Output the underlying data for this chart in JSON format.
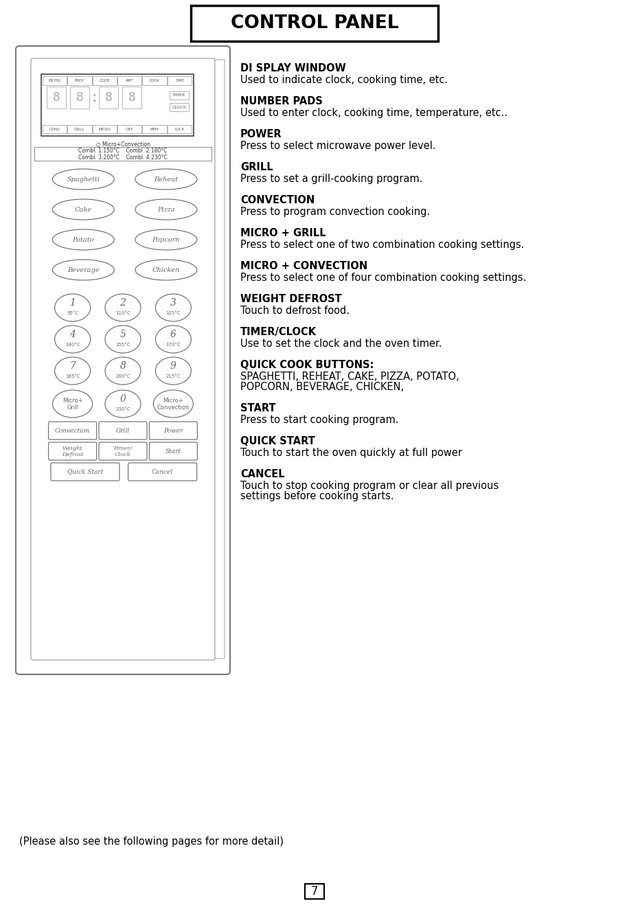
{
  "title": "CONTROL PANEL",
  "bg_color": "#ffffff",
  "entries": [
    {
      "heading": "DI SPLAY WINDOW",
      "body": "Used to indicate clock, cooking time, etc."
    },
    {
      "heading": "NUMBER PADS",
      "body": "Used to enter clock, cooking time, temperature, etc.."
    },
    {
      "heading": "POWER",
      "body": "Press to select microwave power level."
    },
    {
      "heading": "GRILL",
      "body": "Press to set a grill-cooking program."
    },
    {
      "heading": "CONVECTION",
      "body": "Press to program convection cooking."
    },
    {
      "heading": "MICRO + GRILL",
      "body": "Press to select one of two combination cooking settings."
    },
    {
      "heading": "MICRO + CONVECTION",
      "body": "Press to select one of four combination cooking settings."
    },
    {
      "heading": "WEIGHT DEFROST",
      "body": "Touch to defrost food."
    },
    {
      "heading": "TIMER/CLOCK",
      "body": "Use to set the clock and the oven timer."
    },
    {
      "heading": "QUICK COOK BUTTONS:",
      "body": "SPAGHETTI, REHEAT, CAKE, PIZZA, POTATO,\nPOPCORN, BEVERAGE, CHICKEN,"
    },
    {
      "heading": "START",
      "body": "Press to start cooking program."
    },
    {
      "heading": "QUICK START",
      "body": "Touch to start the oven quickly at full power"
    },
    {
      "heading": "CANCEL",
      "body": "Touch to stop cooking program or clear all previous\nsettings before cooking starts."
    }
  ],
  "footer": "(Please also see the following pages for more detail)",
  "page_number": "7",
  "panel_rows_top": [
    "ENTER",
    "PREV",
    "CODE",
    "AMT",
    "COOK",
    "TIME"
  ],
  "panel_rows_bot": [
    "CONV",
    "GRILL",
    "MICRO",
    "DEF",
    "MEM",
    "LOCK"
  ],
  "panel_right_labels": [
    "TIMER",
    "CLOCK"
  ],
  "combi_line0": "○ Micro+Convection",
  "combi_line1": "Combl. 1:150°C    Combl. 2:180°C",
  "combi_line2": "Combl. 3:200°C    Combl. 4:230°C",
  "quick_buttons": [
    [
      "Spaghetti",
      "Reheat"
    ],
    [
      "Cake",
      "Pizza"
    ],
    [
      "Potato",
      "Popcorn"
    ],
    [
      "Beverage",
      "Chicken"
    ]
  ],
  "num_rows": [
    [
      [
        "1",
        "95°C"
      ],
      [
        "2",
        "110°C"
      ],
      [
        "3",
        "125°C"
      ]
    ],
    [
      [
        "4",
        "140°C"
      ],
      [
        "5",
        "155°C"
      ],
      [
        "6",
        "170°C"
      ]
    ],
    [
      [
        "7",
        "185°C"
      ],
      [
        "8",
        "200°C"
      ],
      [
        "9",
        "215°C"
      ]
    ]
  ],
  "special_row": [
    [
      "Micro+",
      "Grill",
      null
    ],
    [
      "0",
      "230°C",
      null
    ],
    [
      "Micro+",
      "Convection",
      null
    ]
  ],
  "rect_row1": [
    "Convection",
    "Grill",
    "Power"
  ],
  "rect_row2_lines": [
    [
      "Weight",
      "Defrost"
    ],
    [
      "Timer/",
      "Clock"
    ],
    [
      "Start"
    ]
  ],
  "rect_row3": [
    "Quick Start",
    "Cancel"
  ],
  "panel_edge_color": "#777777",
  "button_color": "#666666",
  "digit_color": "#aaaaaa"
}
